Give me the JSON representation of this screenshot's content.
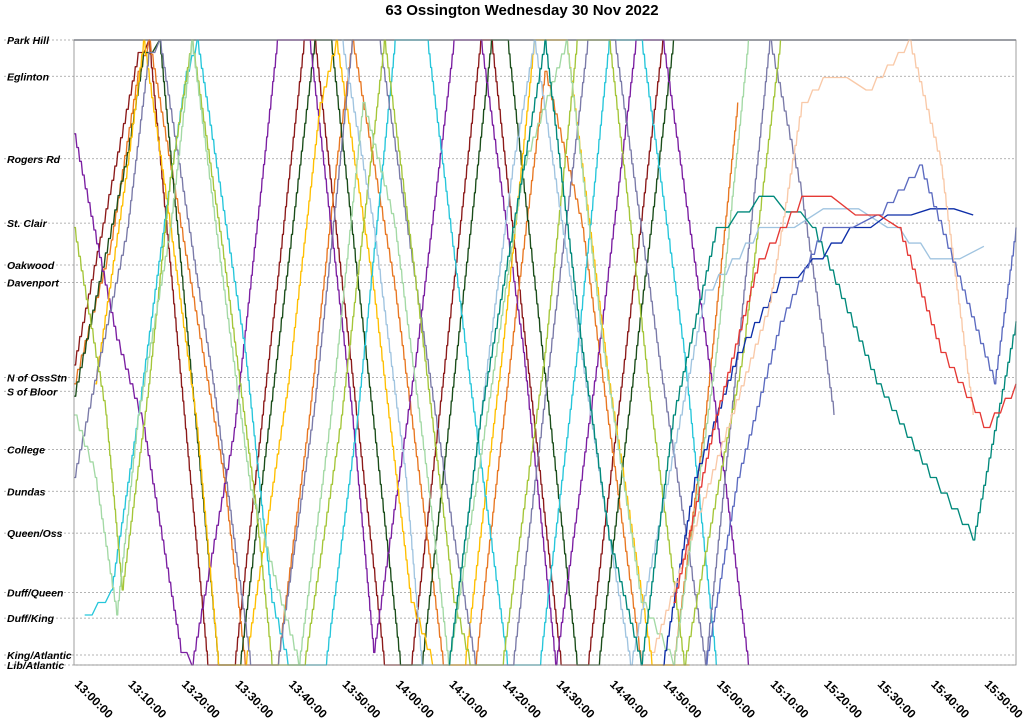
{
  "chart_data": {
    "type": "line",
    "title": "63 Ossington Wednesday 30 Nov 2022",
    "x_range": [
      "13:00:00",
      "15:56:00"
    ],
    "x_ticks": [
      "13:00:00",
      "13:10:00",
      "13:20:00",
      "13:30:00",
      "13:40:00",
      "13:50:00",
      "14:00:00",
      "14:10:00",
      "14:20:00",
      "14:30:00",
      "14:40:00",
      "14:50:00",
      "15:00:00",
      "15:10:00",
      "15:20:00",
      "15:30:00",
      "15:40:00",
      "15:50:00"
    ],
    "stops": [
      {
        "name": "Park Hill",
        "pos": 0.0
      },
      {
        "name": "Eglinton",
        "pos": 0.058
      },
      {
        "name": "Rogers Rd",
        "pos": 0.19
      },
      {
        "name": "St. Clair",
        "pos": 0.293
      },
      {
        "name": "Oakwood",
        "pos": 0.36
      },
      {
        "name": "Davenport",
        "pos": 0.388
      },
      {
        "name": "N of OssStn",
        "pos": 0.54
      },
      {
        "name": "S of Bloor",
        "pos": 0.562
      },
      {
        "name": "College",
        "pos": 0.655
      },
      {
        "name": "Dundas",
        "pos": 0.722
      },
      {
        "name": "Queen/Oss",
        "pos": 0.789
      },
      {
        "name": "Duff/Queen",
        "pos": 0.884
      },
      {
        "name": "Duff/King",
        "pos": 0.925
      },
      {
        "name": "King/Atlantic",
        "pos": 0.984
      },
      {
        "name": "Lib/Atlantic",
        "pos": 1.0
      }
    ],
    "grid": true,
    "series": [
      {
        "color": "#1f2a44",
        "points": [
          [
            0,
            0.0
          ],
          [
            176,
            0.0
          ]
        ]
      },
      {
        "color": "#8b1a1a",
        "points": [
          [
            0,
            0.52
          ],
          [
            12,
            0.02
          ],
          [
            14,
            0.0
          ],
          [
            25,
            1.0
          ],
          [
            30,
            1.0
          ],
          [
            43,
            0.0
          ],
          [
            45,
            0.0
          ],
          [
            58,
            1.0
          ],
          [
            63,
            1.0
          ],
          [
            76,
            0.0
          ],
          [
            78,
            0.0
          ],
          [
            91,
            1.0
          ],
          [
            96,
            1.0
          ],
          [
            110,
            0.0
          ]
        ]
      },
      {
        "color": "#e87722",
        "points": [
          [
            0,
            0.55
          ],
          [
            7,
            0.32
          ],
          [
            12,
            0.05
          ],
          [
            14,
            0.0
          ],
          [
            20,
            0.3
          ],
          [
            28,
            0.7
          ],
          [
            32,
            1.0
          ],
          [
            38,
            1.0
          ],
          [
            44,
            0.6
          ],
          [
            49,
            0.2
          ],
          [
            52,
            0.0
          ],
          [
            60,
            0.4
          ],
          [
            66,
            0.8
          ],
          [
            69,
            1.0
          ],
          [
            75,
            1.0
          ],
          [
            83,
            0.4
          ],
          [
            88,
            0.05
          ],
          [
            95,
            0.3
          ],
          [
            102,
            0.75
          ],
          [
            106,
            1.0
          ],
          [
            112,
            1.0
          ],
          [
            118,
            0.6
          ],
          [
            124,
            0.1
          ]
        ]
      },
      {
        "color": "#1a4d1a",
        "points": [
          [
            0,
            0.57
          ],
          [
            10,
            0.18
          ],
          [
            13,
            0.02
          ],
          [
            16,
            0.0
          ],
          [
            27,
            1.0
          ],
          [
            31,
            1.0
          ],
          [
            45,
            0.0
          ],
          [
            48,
            0.0
          ],
          [
            61,
            1.0
          ],
          [
            65,
            1.0
          ],
          [
            78,
            0.0
          ],
          [
            81,
            0.0
          ],
          [
            94,
            1.0
          ],
          [
            98,
            1.0
          ],
          [
            112,
            0.0
          ]
        ]
      },
      {
        "color": "#7b1fa2",
        "points": [
          [
            0,
            0.15
          ],
          [
            8,
            0.48
          ],
          [
            13,
            0.62
          ],
          [
            20,
            0.98
          ],
          [
            22,
            1.0
          ],
          [
            30,
            0.62
          ],
          [
            38,
            0.0
          ],
          [
            44,
            0.0
          ],
          [
            52,
            0.6
          ],
          [
            56,
            0.98
          ],
          [
            64,
            0.5
          ],
          [
            71,
            0.0
          ],
          [
            76,
            0.0
          ],
          [
            84,
            0.5
          ],
          [
            90,
            1.0
          ],
          [
            98,
            0.5
          ],
          [
            105,
            0.0
          ],
          [
            110,
            0.0
          ],
          [
            120,
            0.6
          ],
          [
            126,
            1.0
          ]
        ]
      },
      {
        "color": "#ffbf00",
        "points": [
          [
            4,
            0.55
          ],
          [
            10,
            0.2
          ],
          [
            13,
            0.0
          ],
          [
            18,
            0.3
          ],
          [
            23,
            0.62
          ],
          [
            27,
            1.0
          ],
          [
            32,
            1.0
          ],
          [
            40,
            0.55
          ],
          [
            46,
            0.1
          ],
          [
            49,
            0.0
          ],
          [
            56,
            0.4
          ],
          [
            63,
            0.9
          ],
          [
            67,
            1.0
          ],
          [
            73,
            1.0
          ],
          [
            80,
            0.5
          ],
          [
            86,
            0.0
          ],
          [
            92,
            0.0
          ],
          [
            100,
            0.55
          ],
          [
            108,
            1.0
          ],
          [
            115,
            1.0
          ]
        ]
      },
      {
        "color": "#26c6da",
        "points": [
          [
            2,
            0.92
          ],
          [
            7,
            0.88
          ],
          [
            12,
            0.6
          ],
          [
            18,
            0.22
          ],
          [
            21,
            0.05
          ],
          [
            23,
            0.0
          ],
          [
            32,
            0.5
          ],
          [
            37,
            0.9
          ],
          [
            40,
            1.0
          ],
          [
            47,
            1.0
          ],
          [
            53,
            0.6
          ],
          [
            60,
            0.0
          ],
          [
            66,
            0.0
          ],
          [
            74,
            0.55
          ],
          [
            81,
            1.0
          ],
          [
            87,
            1.0
          ],
          [
            94,
            0.5
          ],
          [
            100,
            0.0
          ],
          [
            106,
            0.0
          ],
          [
            114,
            0.5
          ],
          [
            120,
            1.0
          ]
        ]
      },
      {
        "color": "#7a7aa8",
        "points": [
          [
            0,
            0.7
          ],
          [
            5,
            0.5
          ],
          [
            10,
            0.3
          ],
          [
            14,
            0.02
          ],
          [
            16,
            0.0
          ],
          [
            26,
            0.55
          ],
          [
            33,
            1.0
          ],
          [
            38,
            1.0
          ],
          [
            45,
            0.58
          ],
          [
            52,
            0.0
          ],
          [
            57,
            0.0
          ],
          [
            64,
            0.4
          ],
          [
            71,
            0.8
          ],
          [
            75,
            1.0
          ],
          [
            82,
            1.0
          ],
          [
            89,
            0.5
          ],
          [
            96,
            0.0
          ],
          [
            101,
            0.0
          ],
          [
            110,
            0.55
          ],
          [
            118,
            1.0
          ],
          [
            130,
            0.0
          ],
          [
            136,
            0.25
          ],
          [
            142,
            0.6
          ]
        ]
      },
      {
        "color": "#a4c639",
        "points": [
          [
            0,
            0.3
          ],
          [
            6,
            0.6
          ],
          [
            9,
            0.88
          ],
          [
            14,
            0.55
          ],
          [
            18,
            0.22
          ],
          [
            22,
            0.0
          ],
          [
            28,
            0.35
          ],
          [
            34,
            0.75
          ],
          [
            37,
            1.0
          ],
          [
            43,
            1.0
          ],
          [
            50,
            0.6
          ],
          [
            56,
            0.15
          ],
          [
            58,
            0.0
          ],
          [
            64,
            0.4
          ],
          [
            71,
            0.9
          ],
          [
            74,
            1.0
          ],
          [
            80,
            1.0
          ],
          [
            88,
            0.5
          ],
          [
            94,
            0.0
          ],
          [
            100,
            0.0
          ],
          [
            108,
            0.6
          ],
          [
            114,
            1.0
          ],
          [
            125,
            0.5
          ],
          [
            132,
            0.0
          ]
        ]
      },
      {
        "color": "#a0c4e0",
        "points": [
          [
            50,
            0.0
          ],
          [
            56,
            0.3
          ],
          [
            62,
            0.7
          ],
          [
            65,
            1.0
          ],
          [
            70,
            1.0
          ],
          [
            76,
            0.6
          ],
          [
            82,
            0.2
          ],
          [
            86,
            0.0
          ],
          [
            93,
            0.4
          ],
          [
            100,
            0.8
          ],
          [
            104,
            1.0
          ],
          [
            118,
            0.4
          ],
          [
            128,
            0.3
          ],
          [
            140,
            0.27
          ],
          [
            152,
            0.3
          ],
          [
            160,
            0.35
          ],
          [
            170,
            0.33
          ]
        ]
      },
      {
        "color": "#a3d9a5",
        "points": [
          [
            0,
            0.6
          ],
          [
            4,
            0.7
          ],
          [
            8,
            0.92
          ],
          [
            12,
            0.6
          ],
          [
            18,
            0.3
          ],
          [
            22,
            0.0
          ],
          [
            28,
            0.4
          ],
          [
            33,
            0.72
          ],
          [
            38,
            0.88
          ],
          [
            42,
            1.0
          ],
          [
            48,
            0.6
          ],
          [
            54,
            0.1
          ],
          [
            60,
            0.3
          ],
          [
            66,
            0.7
          ],
          [
            70,
            1.0
          ],
          [
            78,
            0.55
          ],
          [
            84,
            0.2
          ],
          [
            92,
            0.0
          ],
          [
            99,
            0.5
          ],
          [
            106,
            0.9
          ],
          [
            112,
            1.0
          ],
          [
            120,
            0.5
          ],
          [
            126,
            0.0
          ]
        ]
      },
      {
        "color": "#00897b",
        "points": [
          [
            70,
            1.0
          ],
          [
            76,
            0.6
          ],
          [
            82,
            0.3
          ],
          [
            88,
            0.0
          ],
          [
            95,
            0.5
          ],
          [
            100,
            0.8
          ],
          [
            106,
            1.0
          ],
          [
            112,
            0.6
          ],
          [
            120,
            0.3
          ],
          [
            128,
            0.25
          ],
          [
            138,
            0.3
          ],
          [
            150,
            0.55
          ],
          [
            160,
            0.7
          ],
          [
            168,
            0.8
          ],
          [
            176,
            0.45
          ]
        ]
      },
      {
        "color": "#0d2ea8",
        "points": [
          [
            110,
            1.0
          ],
          [
            116,
            0.7
          ],
          [
            124,
            0.5
          ],
          [
            132,
            0.38
          ],
          [
            138,
            0.35
          ],
          [
            145,
            0.3
          ],
          [
            152,
            0.28
          ],
          [
            160,
            0.27
          ],
          [
            168,
            0.28
          ]
        ]
      },
      {
        "color": "#f9c9a8",
        "points": [
          [
            108,
            0.98
          ],
          [
            115,
            0.8
          ],
          [
            122,
            0.62
          ],
          [
            130,
            0.42
          ],
          [
            136,
            0.1
          ],
          [
            140,
            0.06
          ],
          [
            148,
            0.08
          ],
          [
            156,
            0.0
          ],
          [
            162,
            0.2
          ],
          [
            168,
            0.6
          ]
        ]
      },
      {
        "color": "#5c6bc0",
        "points": [
          [
            118,
            1.0
          ],
          [
            124,
            0.7
          ],
          [
            132,
            0.45
          ],
          [
            140,
            0.3
          ],
          [
            150,
            0.28
          ],
          [
            158,
            0.2
          ],
          [
            166,
            0.4
          ],
          [
            172,
            0.55
          ],
          [
            176,
            0.3
          ]
        ]
      },
      {
        "color": "#e53935",
        "points": [
          [
            112,
            0.9
          ],
          [
            120,
            0.6
          ],
          [
            128,
            0.35
          ],
          [
            136,
            0.25
          ],
          [
            146,
            0.28
          ],
          [
            154,
            0.3
          ],
          [
            162,
            0.5
          ],
          [
            170,
            0.62
          ],
          [
            176,
            0.55
          ]
        ]
      }
    ]
  }
}
